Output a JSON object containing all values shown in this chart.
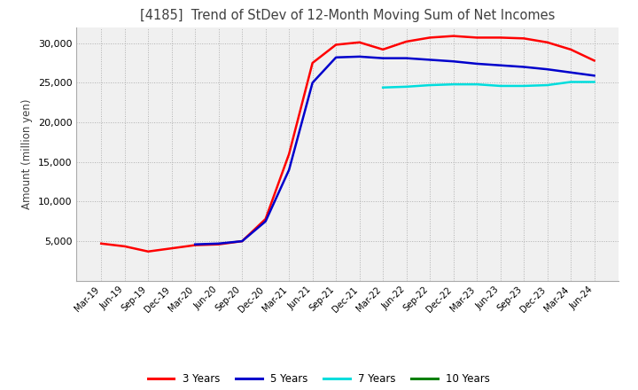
{
  "title": "[4185]  Trend of StDev of 12-Month Moving Sum of Net Incomes",
  "ylabel": "Amount (million yen)",
  "title_color": "#404040",
  "background_color": "#ffffff",
  "plot_bg_color": "#f0f0f0",
  "grid_color": "#b0b0b0",
  "ylim": [
    0,
    32000
  ],
  "yticks": [
    5000,
    10000,
    15000,
    20000,
    25000,
    30000
  ],
  "x_labels": [
    "Mar-19",
    "Jun-19",
    "Sep-19",
    "Dec-19",
    "Mar-20",
    "Jun-20",
    "Sep-20",
    "Dec-20",
    "Mar-21",
    "Jun-21",
    "Sep-21",
    "Dec-21",
    "Mar-22",
    "Jun-22",
    "Sep-22",
    "Dec-22",
    "Mar-23",
    "Jun-23",
    "Sep-23",
    "Dec-23",
    "Mar-24",
    "Jun-24"
  ],
  "series": {
    "3 Years": {
      "color": "#ff0000",
      "data": [
        4700,
        4350,
        3700,
        4100,
        4500,
        4600,
        5000,
        7800,
        16000,
        27500,
        29800,
        30100,
        29200,
        30200,
        30700,
        30900,
        30700,
        30700,
        30600,
        30100,
        29200,
        27800
      ]
    },
    "5 Years": {
      "color": "#0000cc",
      "data": [
        null,
        null,
        null,
        null,
        4600,
        4700,
        5000,
        7500,
        14000,
        25000,
        28200,
        28300,
        28100,
        28100,
        27900,
        27700,
        27400,
        27200,
        27000,
        26700,
        26300,
        25900
      ]
    },
    "7 Years": {
      "color": "#00dddd",
      "data": [
        null,
        null,
        null,
        null,
        null,
        null,
        null,
        null,
        null,
        null,
        null,
        null,
        24400,
        24500,
        24700,
        24800,
        24800,
        24600,
        24600,
        24700,
        25100,
        25100
      ]
    },
    "10 Years": {
      "color": "#008000",
      "data": [
        null,
        null,
        null,
        null,
        null,
        null,
        null,
        null,
        null,
        null,
        null,
        null,
        null,
        null,
        null,
        null,
        null,
        null,
        null,
        null,
        null,
        null
      ]
    }
  },
  "legend_labels": [
    "3 Years",
    "5 Years",
    "7 Years",
    "10 Years"
  ],
  "legend_colors": [
    "#ff0000",
    "#0000cc",
    "#00dddd",
    "#008000"
  ]
}
